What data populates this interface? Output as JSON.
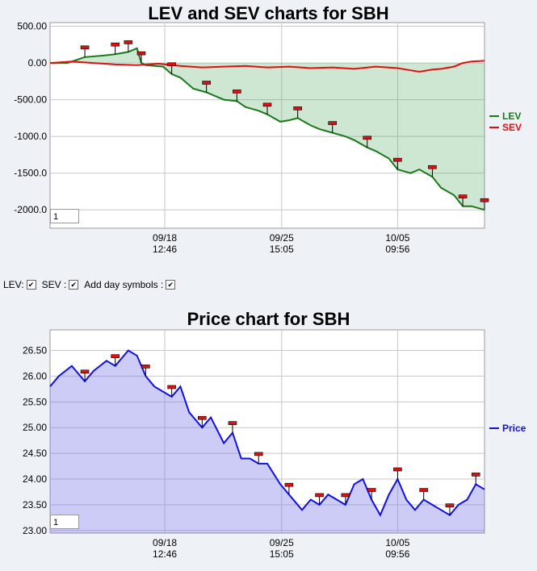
{
  "chart_data": [
    {
      "type": "line",
      "title": "LEV and SEV charts for SBH",
      "ylim": [
        -2250,
        550
      ],
      "y_ticks": [
        "500.00",
        "0.00",
        "-500.00",
        "-1000.0",
        "-1500.0",
        "-2000.0"
      ],
      "y_tick_values": [
        500,
        0,
        -500,
        -1000,
        -1500,
        -2000
      ],
      "x_ticks": [
        {
          "label1": "09/18",
          "label2": "12:46",
          "x": 0.264
        },
        {
          "label1": "09/25",
          "label2": "15:05",
          "x": 0.533
        },
        {
          "label1": "10/05",
          "label2": "09:56",
          "x": 0.8
        }
      ],
      "legend_position": "right",
      "zoom_value": "1",
      "series": [
        {
          "name": "LEV",
          "color": "#1a7a1a",
          "x": [
            0,
            0.04,
            0.08,
            0.12,
            0.15,
            0.18,
            0.2,
            0.21,
            0.22,
            0.26,
            0.28,
            0.3,
            0.33,
            0.36,
            0.38,
            0.4,
            0.43,
            0.45,
            0.48,
            0.5,
            0.53,
            0.55,
            0.57,
            0.6,
            0.62,
            0.65,
            0.68,
            0.7,
            0.73,
            0.75,
            0.78,
            0.8,
            0.83,
            0.85,
            0.88,
            0.9,
            0.93,
            0.95,
            0.97,
            1.0
          ],
          "values": [
            0,
            0,
            80,
            100,
            120,
            150,
            200,
            0,
            -30,
            -50,
            -150,
            -200,
            -350,
            -400,
            -450,
            -500,
            -520,
            -600,
            -650,
            -700,
            -800,
            -780,
            -750,
            -850,
            -900,
            -950,
            -1000,
            -1050,
            -1150,
            -1200,
            -1300,
            -1450,
            -1500,
            -1450,
            -1550,
            -1700,
            -1800,
            -1950,
            -1950,
            -2000
          ]
        },
        {
          "name": "SEV",
          "color": "#e01010",
          "x": [
            0,
            0.05,
            0.1,
            0.15,
            0.2,
            0.25,
            0.3,
            0.35,
            0.4,
            0.45,
            0.5,
            0.55,
            0.6,
            0.65,
            0.7,
            0.75,
            0.8,
            0.83,
            0.85,
            0.88,
            0.9,
            0.93,
            0.95,
            0.97,
            1.0
          ],
          "values": [
            0,
            20,
            0,
            -20,
            -30,
            -10,
            -40,
            -60,
            -50,
            -40,
            -60,
            -50,
            -70,
            -60,
            -80,
            -50,
            -70,
            -100,
            -120,
            -90,
            -80,
            -50,
            0,
            20,
            30
          ]
        }
      ]
    },
    {
      "type": "area",
      "title": "Price chart for SBH",
      "ylim": [
        22.95,
        26.9
      ],
      "y_ticks": [
        "26.50",
        "26.00",
        "25.50",
        "25.00",
        "24.50",
        "24.00",
        "23.50",
        "23.00"
      ],
      "y_tick_values": [
        26.5,
        26.0,
        25.5,
        25.0,
        24.5,
        24.0,
        23.5,
        23.0
      ],
      "x_ticks": [
        {
          "label1": "09/18",
          "label2": "12:46",
          "x": 0.264
        },
        {
          "label1": "09/25",
          "label2": "15:05",
          "x": 0.533
        },
        {
          "label1": "10/05",
          "label2": "09:56",
          "x": 0.8
        }
      ],
      "legend_position": "right",
      "zoom_value": "1",
      "series": [
        {
          "name": "Price",
          "color": "#1010e0",
          "x": [
            0,
            0.02,
            0.05,
            0.08,
            0.1,
            0.13,
            0.15,
            0.18,
            0.2,
            0.22,
            0.24,
            0.26,
            0.28,
            0.3,
            0.32,
            0.35,
            0.37,
            0.4,
            0.42,
            0.44,
            0.46,
            0.48,
            0.5,
            0.53,
            0.55,
            0.58,
            0.6,
            0.62,
            0.64,
            0.66,
            0.68,
            0.7,
            0.72,
            0.74,
            0.76,
            0.78,
            0.8,
            0.82,
            0.84,
            0.86,
            0.88,
            0.9,
            0.92,
            0.94,
            0.96,
            0.98,
            1.0
          ],
          "values": [
            25.8,
            26.0,
            26.2,
            25.9,
            26.1,
            26.3,
            26.2,
            26.5,
            26.4,
            26.0,
            25.8,
            25.7,
            25.6,
            25.8,
            25.3,
            25.0,
            25.2,
            24.7,
            24.9,
            24.4,
            24.4,
            24.3,
            24.3,
            23.9,
            23.7,
            23.4,
            23.6,
            23.5,
            23.7,
            23.6,
            23.5,
            23.9,
            24.0,
            23.6,
            23.3,
            23.7,
            24.0,
            23.6,
            23.4,
            23.6,
            23.5,
            23.4,
            23.3,
            23.5,
            23.6,
            23.9,
            23.8
          ]
        }
      ]
    }
  ],
  "controls": {
    "lev": "LEV:",
    "sev": "SEV :",
    "day": "Add day symbols :",
    "check": "✔"
  }
}
